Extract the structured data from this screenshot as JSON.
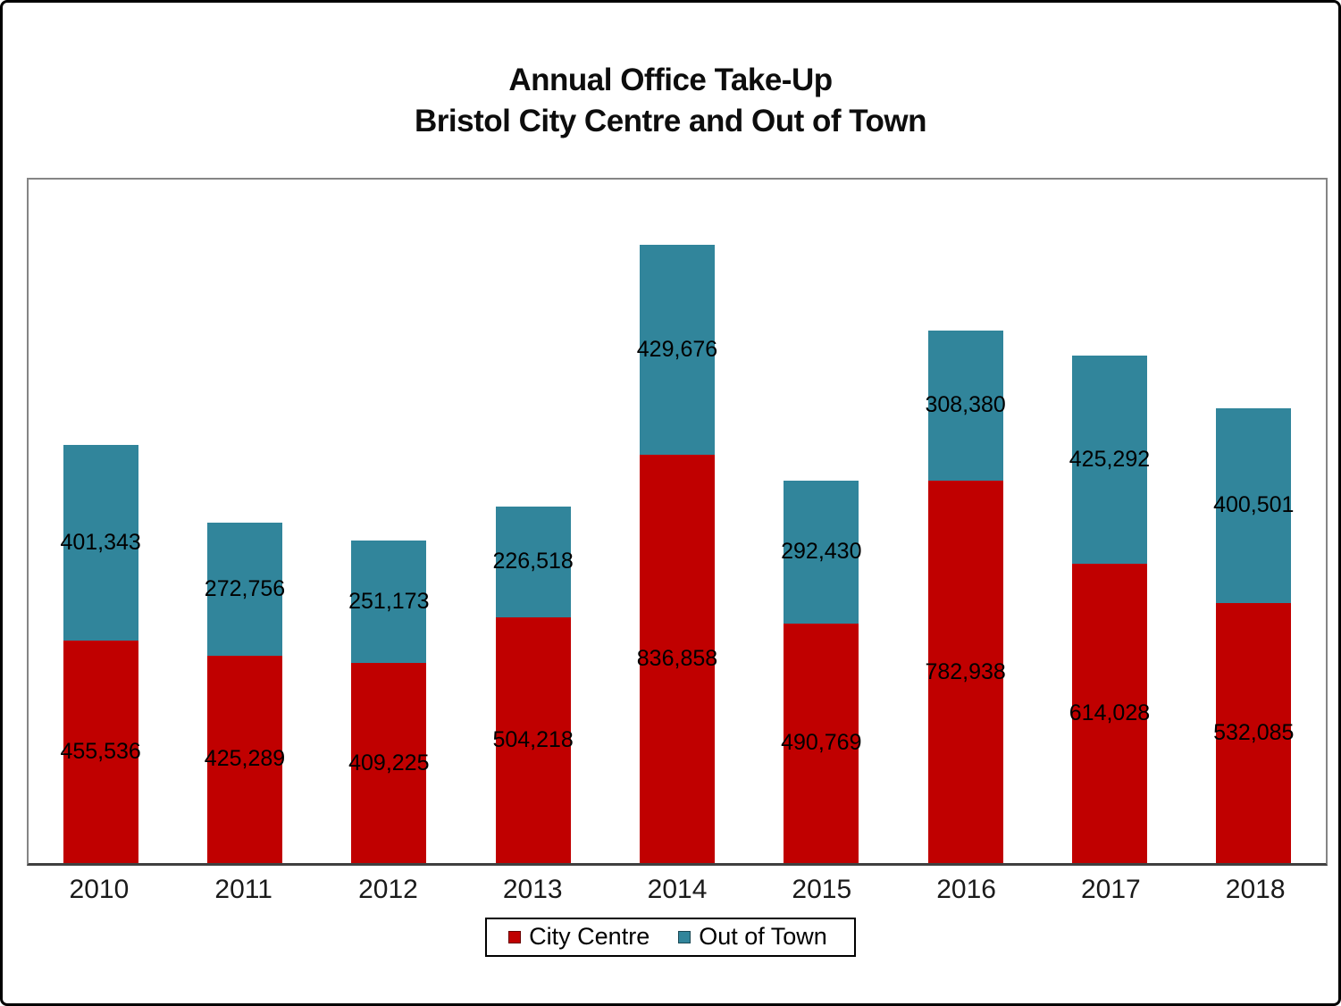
{
  "chart_data": {
    "type": "bar",
    "stacked": true,
    "title_line1": "Annual Office Take-Up",
    "title_line2": "Bristol City Centre and Out of Town",
    "categories": [
      "2010",
      "2011",
      "2012",
      "2013",
      "2014",
      "2015",
      "2016",
      "2017",
      "2018"
    ],
    "series": [
      {
        "name": "City Centre",
        "color": "#C00000",
        "values": [
          455536,
          425289,
          409225,
          504218,
          836858,
          490769,
          782938,
          614028,
          532085
        ]
      },
      {
        "name": "Out of Town",
        "color": "#31859B",
        "values": [
          401343,
          272756,
          251173,
          226518,
          429676,
          292430,
          308380,
          425292,
          400501
        ]
      }
    ],
    "ylim": [
      0,
      1400000
    ],
    "xlabel": "",
    "ylabel": "",
    "grid": false,
    "legend_position": "bottom",
    "data_labels": "comma-separated, centered in each segment",
    "colors": {
      "plot_border": "#858585",
      "axis_line": "#404040",
      "label_text": "#000000"
    }
  }
}
